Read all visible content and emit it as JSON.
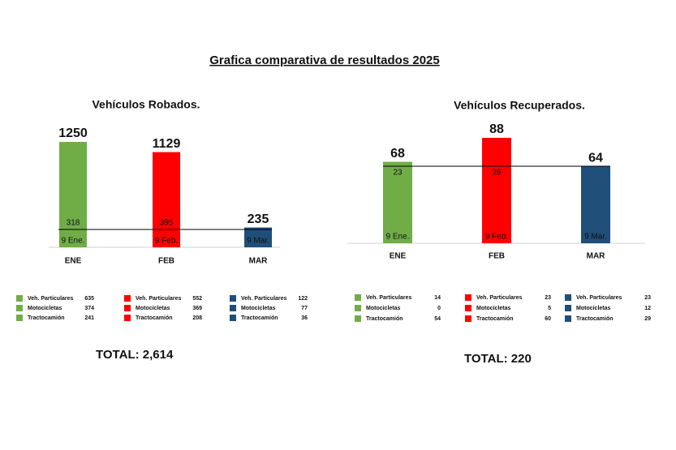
{
  "title": "Grafica comparativa de resultados 2025",
  "chart_data": [
    {
      "type": "bar",
      "title": "Vehículos Robados.",
      "categories": [
        "ENE",
        "FEB",
        "MAR"
      ],
      "values": [
        1250,
        1129,
        235
      ],
      "colors": [
        "#70ad47",
        "#ff0000",
        "#1f4e79"
      ],
      "inner_values": [
        318,
        395,
        null
      ],
      "date_labels": [
        "9 Ene.",
        "9 Feb.",
        "9 Mar."
      ],
      "breakdown": [
        [
          {
            "name": "Veh. Particulares",
            "value": 635
          },
          {
            "name": "Motocicletas",
            "value": 374
          },
          {
            "name": "Tractocamión",
            "value": 241
          }
        ],
        [
          {
            "name": "Veh. Particulares",
            "value": 552
          },
          {
            "name": "Motocicletas",
            "value": 369
          },
          {
            "name": "Tractocamión",
            "value": 208
          }
        ],
        [
          {
            "name": "Veh. Particulares",
            "value": 122
          },
          {
            "name": "Motocicletas",
            "value": 77
          },
          {
            "name": "Tractocamión",
            "value": 36
          }
        ]
      ],
      "total_label": "TOTAL:",
      "total": 2614,
      "total_value_label": "2,614"
    },
    {
      "type": "bar",
      "title": "Vehículos Recuperados.",
      "categories": [
        "ENE",
        "FEB",
        "MAR"
      ],
      "values": [
        68,
        88,
        64
      ],
      "colors": [
        "#70ad47",
        "#ff0000",
        "#1f4e79"
      ],
      "inner_values": [
        23,
        26,
        null
      ],
      "date_labels": [
        "9 Ene.",
        "9 Feb.",
        "9 Mar."
      ],
      "breakdown": [
        [
          {
            "name": "Veh. Particulares",
            "value": 14
          },
          {
            "name": "Motocicletas",
            "value": 0
          },
          {
            "name": "Tractocamión",
            "value": 54
          }
        ],
        [
          {
            "name": "Veh. Particulares",
            "value": 23
          },
          {
            "name": "Motocicletas",
            "value": 5
          },
          {
            "name": "Tractocamión",
            "value": 60
          }
        ],
        [
          {
            "name": "Veh. Particulares",
            "value": 23
          },
          {
            "name": "Motocicletas",
            "value": 12
          },
          {
            "name": "Tractocamión",
            "value": 29
          }
        ]
      ],
      "total_label": "TOTAL:",
      "total": 220,
      "total_value_label": "220"
    }
  ]
}
